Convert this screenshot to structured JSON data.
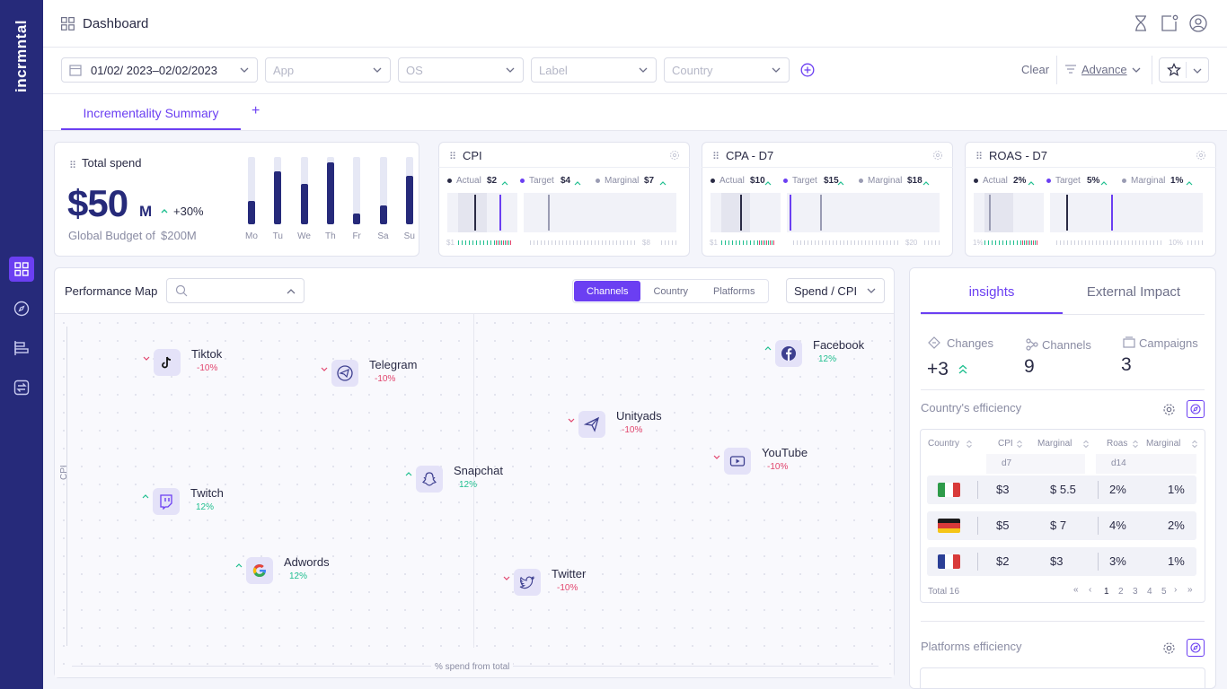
{
  "app": {
    "logo": "incrmntal",
    "page_title": "Dashboard"
  },
  "filters": {
    "date_range": "01/02/ 2023–02/02/2023",
    "app_placeholder": "App",
    "os_placeholder": "OS",
    "label_placeholder": "Label",
    "country_placeholder": "Country",
    "clear": "Clear",
    "advance": "Advance"
  },
  "tabs": {
    "active": "Incrementality Summary",
    "add": "+"
  },
  "total_spend": {
    "title": "Total spend",
    "amount": "$50",
    "unit": "M",
    "change": "+30%",
    "budget_label": "Global Budget of",
    "budget_value": "$200M",
    "days": [
      "Mo",
      "Tu",
      "We",
      "Th",
      "Fr",
      "Sa",
      "Su"
    ],
    "levels": [
      0.35,
      0.78,
      0.6,
      0.92,
      0.16,
      0.28,
      0.72
    ]
  },
  "kpis": [
    {
      "title": "CPI",
      "actual": "$2",
      "target": "$4",
      "marginal": "$7",
      "left_scale": "$1",
      "right_scale": "$8"
    },
    {
      "title": "CPA - D7",
      "actual": "$10",
      "target": "$15",
      "marginal": "$18",
      "left_scale": "$1",
      "right_scale": "$20"
    },
    {
      "title": "ROAS - D7",
      "actual": "2%",
      "target": "5%",
      "marginal": "1%",
      "left_scale": "1%",
      "right_scale": "10%"
    }
  ],
  "kpi_labels": {
    "actual": "Actual",
    "target": "Target",
    "marginal": "Marginal"
  },
  "performance_map": {
    "title": "Performance Map",
    "segments": [
      "Channels",
      "Country",
      "Platforms"
    ],
    "metric": "Spend / CPI",
    "y_axis": "CPI",
    "x_axis": "% spend from total",
    "channels": [
      {
        "name": "Tiktok",
        "change": "-10%",
        "dir": "down",
        "icon": "tiktok-icon"
      },
      {
        "name": "Telegram",
        "change": "-10%",
        "dir": "down",
        "icon": "telegram-icon"
      },
      {
        "name": "Facebook",
        "change": "12%",
        "dir": "up",
        "icon": "facebook-icon"
      },
      {
        "name": "Unityads",
        "change": "-10%",
        "dir": "down",
        "icon": "unityads-icon"
      },
      {
        "name": "YouTube",
        "change": "-10%",
        "dir": "down",
        "icon": "youtube-icon"
      },
      {
        "name": "Snapchat",
        "change": "12%",
        "dir": "up",
        "icon": "snapchat-icon"
      },
      {
        "name": "Twitch",
        "change": "12%",
        "dir": "up",
        "icon": "twitch-icon"
      },
      {
        "name": "Adwords",
        "change": "12%",
        "dir": "up",
        "icon": "google-icon"
      },
      {
        "name": "Twitter",
        "change": "-10%",
        "dir": "down",
        "icon": "twitter-icon"
      }
    ]
  },
  "insights": {
    "tabs": [
      "insights",
      "External Impact"
    ],
    "stats": [
      {
        "label": "Changes",
        "value": "+3"
      },
      {
        "label": "Channels",
        "value": "9"
      },
      {
        "label": "Campaigns",
        "value": "3"
      }
    ],
    "country_title": "Country's efficiency",
    "columns": [
      "Country",
      "CPI",
      "Marginal",
      "Roas",
      "Marginal"
    ],
    "sub_cols": [
      "d7",
      "d14"
    ],
    "rows": [
      {
        "flag": "italy-flag",
        "cpi": "$3",
        "marginal": "$ 5.5",
        "roas": "2%",
        "marginal2": "1%"
      },
      {
        "flag": "germany-flag",
        "cpi": "$5",
        "marginal": "$ 7",
        "roas": "4%",
        "marginal2": "2%"
      },
      {
        "flag": "france-flag",
        "cpi": "$2",
        "marginal": "$3",
        "roas": "3%",
        "marginal2": "1%"
      }
    ],
    "total": "Total 16",
    "pages": [
      "1",
      "2",
      "3",
      "4",
      "5"
    ],
    "platforms_title": "Platforms efficiency"
  },
  "colors": {
    "sidebar": "#262a7a",
    "accent": "#6b3ff2",
    "up": "#1fbf8f",
    "down": "#e2456e"
  }
}
